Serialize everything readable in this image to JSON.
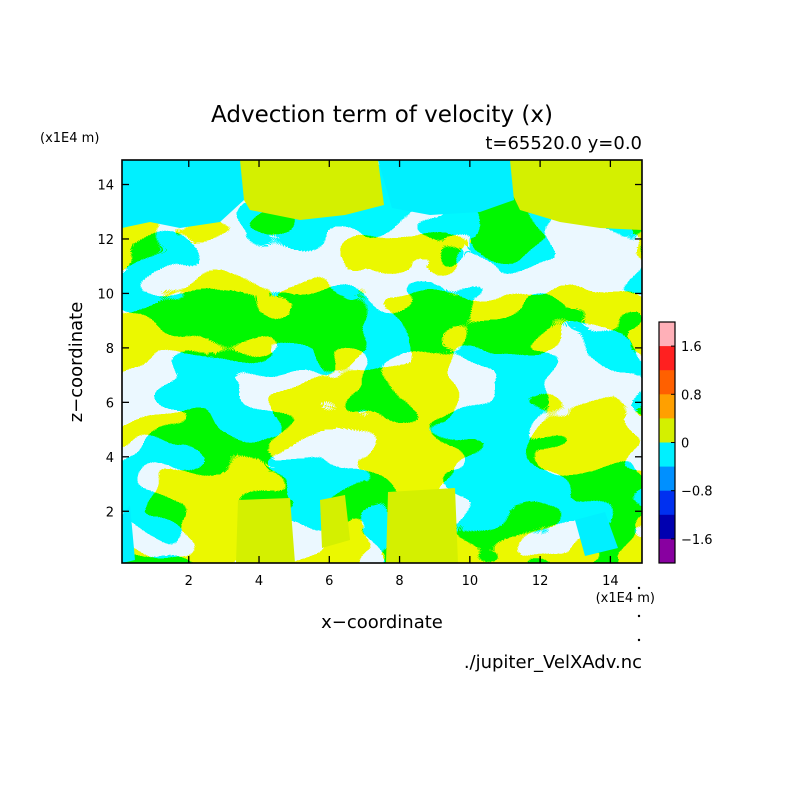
{
  "chart_data": {
    "type": "heatmap",
    "title": "Advection term of velocity (x)",
    "subtitle": "t=65520.0 y=0.0",
    "xlabel": "x−coordinate",
    "ylabel": "z−coordinate",
    "x_unit": "(x1E4 m)",
    "y_unit": "(x1E4 m)",
    "xlim": [
      0.1,
      14.9
    ],
    "ylim": [
      0.1,
      14.9
    ],
    "x_ticks": [
      "2",
      "4",
      "6",
      "8",
      "10",
      "12",
      "14"
    ],
    "y_ticks": [
      "2",
      "4",
      "6",
      "8",
      "10",
      "12",
      "14"
    ],
    "x_tick_values": [
      2,
      4,
      6,
      8,
      10,
      12,
      14
    ],
    "y_tick_values": [
      2,
      4,
      6,
      8,
      10,
      12,
      14
    ],
    "source_file": "./jupiter_VelXAdv.nc",
    "colorbar": {
      "labels": [
        "1.6",
        "0.8",
        "0",
        "−0.8",
        "−1.6"
      ],
      "label_values": [
        1.6,
        0.8,
        0,
        -0.8,
        -1.6
      ],
      "range": [
        -2.0,
        2.0
      ],
      "step": 0.4,
      "colors_top_to_bottom": [
        "#ffb0b8",
        "#ff2020",
        "#ff6000",
        "#ffa000",
        "#d4f000",
        "#00f0ff",
        "#0090ff",
        "#0030f0",
        "#0000b0",
        "#8800a0"
      ]
    },
    "field_colors": {
      "positive": "#d4f000",
      "negative": "#00f0ff"
    }
  }
}
